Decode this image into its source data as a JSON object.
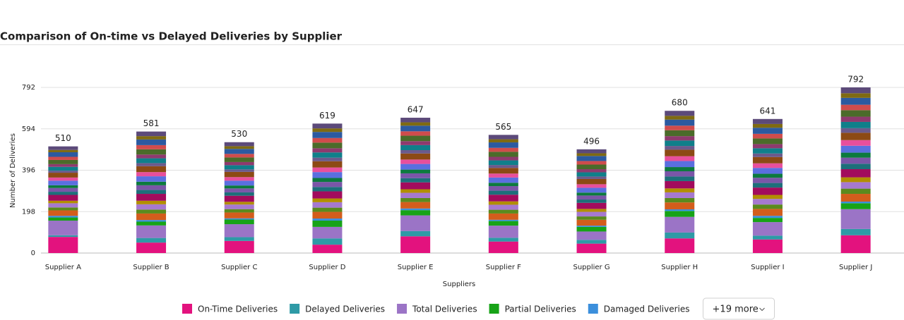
{
  "chart_data": {
    "type": "stacked_bar",
    "title": "Comparison of On-time vs Delayed Deliveries by Supplier",
    "x_label": "Suppliers",
    "y_label": "Number of Deliveries",
    "categories": [
      "Supplier A",
      "Supplier B",
      "Supplier C",
      "Supplier D",
      "Supplier E",
      "Supplier F",
      "Supplier G",
      "Supplier H",
      "Supplier I",
      "Supplier J"
    ],
    "ylim": [
      0,
      792
    ],
    "yticks": [
      0,
      198,
      396,
      594,
      792
    ],
    "grid": true,
    "totals": [
      510,
      581,
      530,
      619,
      647,
      565,
      496,
      680,
      641,
      792
    ],
    "legend_more": "+19 more",
    "series": [
      {
        "name": "On-Time Deliveries",
        "color": "#e3127e",
        "values": [
          77,
          50,
          58,
          40,
          80,
          55,
          45,
          70,
          65,
          85
        ]
      },
      {
        "name": "Delayed Deliveries",
        "color": "#2e9aa6",
        "values": [
          8,
          22,
          18,
          30,
          25,
          18,
          18,
          28,
          18,
          30
        ]
      },
      {
        "name": "Total Deliveries",
        "color": "#9b74c6",
        "values": [
          70,
          60,
          62,
          55,
          75,
          58,
          40,
          75,
          65,
          95
        ]
      },
      {
        "name": "Partial Deliveries",
        "color": "#17a317",
        "values": [
          15,
          18,
          22,
          30,
          25,
          22,
          22,
          28,
          20,
          28
        ]
      },
      {
        "name": "Damaged Deliveries",
        "color": "#3b8fdc",
        "values": [
          8,
          8,
          6,
          10,
          8,
          6,
          6,
          8,
          10,
          8
        ]
      },
      {
        "color": "#d35d1c",
        "values": [
          26,
          31,
          28,
          32,
          31,
          30,
          28,
          33,
          33,
          37
        ]
      },
      {
        "color": "#5b8a1e",
        "values": [
          14,
          19,
          16,
          20,
          19,
          18,
          16,
          21,
          21,
          25
        ]
      },
      {
        "color": "#a679cf",
        "values": [
          20,
          25,
          22,
          26,
          25,
          24,
          22,
          27,
          27,
          31
        ]
      },
      {
        "color": "#b28e02",
        "values": [
          12,
          17,
          13,
          18,
          17,
          16,
          14,
          19,
          19,
          23
        ]
      },
      {
        "color": "#a20b5d",
        "values": [
          28,
          33,
          29,
          34,
          33,
          32,
          29,
          35,
          35,
          39
        ]
      },
      {
        "color": "#1d6f7a",
        "values": [
          15,
          19,
          16,
          21,
          20,
          19,
          16,
          22,
          22,
          26
        ]
      },
      {
        "color": "#7a56a8",
        "values": [
          18,
          22,
          19,
          24,
          23,
          22,
          19,
          25,
          25,
          29
        ]
      },
      {
        "color": "#0c7a3e",
        "values": [
          13,
          17,
          14,
          19,
          18,
          16,
          14,
          20,
          19,
          24
        ]
      },
      {
        "color": "#5a6fe0",
        "values": [
          22,
          26,
          23,
          28,
          27,
          25,
          23,
          29,
          28,
          33
        ]
      },
      {
        "color": "#e84f9c",
        "values": [
          15,
          20,
          17,
          22,
          21,
          19,
          17,
          23,
          22,
          27
        ]
      },
      {
        "color": "#8c4a14",
        "values": [
          23,
          28,
          25,
          30,
          29,
          27,
          25,
          31,
          30,
          35
        ]
      },
      {
        "color": "#6b5a8c",
        "values": [
          10,
          15,
          12,
          17,
          16,
          14,
          12,
          18,
          17,
          22
        ]
      },
      {
        "color": "#0f7f8a",
        "values": [
          18,
          23,
          20,
          25,
          24,
          22,
          20,
          26,
          25,
          30
        ]
      },
      {
        "color": "#8e3a6e",
        "values": [
          13,
          18,
          15,
          20,
          19,
          17,
          15,
          21,
          20,
          25
        ]
      },
      {
        "color": "#4b6b2a",
        "values": [
          20,
          25,
          22,
          27,
          26,
          24,
          22,
          28,
          27,
          31
        ]
      },
      {
        "color": "#d04c4c",
        "values": [
          15,
          20,
          17,
          22,
          21,
          19,
          17,
          22,
          22,
          26
        ]
      },
      {
        "color": "#2c5aa0",
        "values": [
          22,
          27,
          24,
          29,
          27,
          26,
          24,
          29,
          29,
          33
        ]
      },
      {
        "color": "#7f6a12",
        "values": [
          11,
          16,
          13,
          17,
          16,
          15,
          13,
          18,
          18,
          22
        ]
      },
      {
        "color": "#5c4a7a",
        "values": [
          17,
          22,
          19,
          23,
          22,
          21,
          19,
          24,
          24,
          28
        ]
      }
    ]
  }
}
